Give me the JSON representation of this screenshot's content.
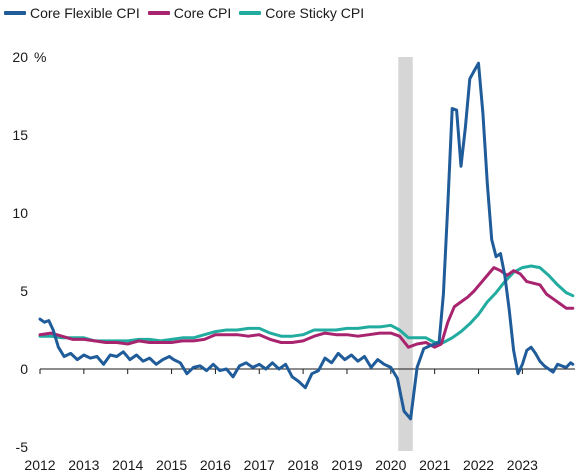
{
  "chart_data": {
    "type": "line",
    "title": "",
    "xlabel": "",
    "ylabel": "",
    "y_unit": "%",
    "ylim": [
      -5,
      20
    ],
    "yticks": [
      -5,
      0,
      5,
      10,
      15,
      20
    ],
    "xlim": [
      2012,
      2024.2
    ],
    "xticks": [
      2012,
      2013,
      2014,
      2015,
      2016,
      2017,
      2018,
      2019,
      2020,
      2021,
      2022,
      2023
    ],
    "legend_position": "top-left",
    "grid": false,
    "zero_line": true,
    "recession_shading": [
      [
        2020.17,
        2020.5
      ]
    ],
    "colors": {
      "flexible": "#1f5c99",
      "core": "#a8246e",
      "sticky": "#22aca0",
      "shade": "#d6d6d6"
    },
    "series": [
      {
        "name": "Core Flexible CPI",
        "key": "flexible",
        "x": [
          2012.0,
          2012.1,
          2012.2,
          2012.3,
          2012.42,
          2012.55,
          2012.7,
          2012.85,
          2013.0,
          2013.15,
          2013.3,
          2013.45,
          2013.6,
          2013.75,
          2013.9,
          2014.05,
          2014.2,
          2014.35,
          2014.5,
          2014.65,
          2014.8,
          2014.95,
          2015.05,
          2015.2,
          2015.35,
          2015.5,
          2015.65,
          2015.8,
          2015.95,
          2016.1,
          2016.25,
          2016.4,
          2016.55,
          2016.7,
          2016.85,
          2017.0,
          2017.15,
          2017.3,
          2017.45,
          2017.6,
          2017.75,
          2017.9,
          2018.05,
          2018.2,
          2018.35,
          2018.5,
          2018.65,
          2018.8,
          2018.95,
          2019.1,
          2019.25,
          2019.4,
          2019.55,
          2019.7,
          2019.85,
          2020.0,
          2020.15,
          2020.3,
          2020.45,
          2020.6,
          2020.75,
          2020.9,
          2021.0,
          2021.1,
          2021.2,
          2021.3,
          2021.4,
          2021.5,
          2021.6,
          2021.7,
          2021.8,
          2021.9,
          2022.0,
          2022.1,
          2022.2,
          2022.3,
          2022.4,
          2022.5,
          2022.6,
          2022.7,
          2022.8,
          2022.9,
          2023.0,
          2023.1,
          2023.2,
          2023.3,
          2023.4,
          2023.5,
          2023.6,
          2023.7,
          2023.8,
          2023.9,
          2024.0,
          2024.1,
          2024.15
        ],
        "values": [
          3.2,
          3.0,
          3.1,
          2.5,
          1.4,
          0.8,
          1.0,
          0.6,
          0.9,
          0.7,
          0.8,
          0.3,
          0.9,
          0.8,
          1.1,
          0.6,
          0.9,
          0.5,
          0.7,
          0.3,
          0.6,
          0.8,
          0.6,
          0.4,
          -0.3,
          0.1,
          0.2,
          -0.1,
          0.3,
          -0.1,
          0.0,
          -0.5,
          0.2,
          0.4,
          0.1,
          0.3,
          0.0,
          0.4,
          0.0,
          0.3,
          -0.5,
          -0.8,
          -1.2,
          -0.3,
          -0.1,
          0.7,
          0.4,
          1.0,
          0.6,
          0.9,
          0.5,
          0.8,
          0.1,
          0.6,
          0.3,
          0.1,
          -0.6,
          -2.7,
          -3.2,
          0.1,
          1.3,
          1.5,
          1.6,
          1.7,
          4.8,
          10.5,
          16.7,
          16.6,
          13.0,
          15.5,
          18.6,
          19.1,
          19.6,
          16.4,
          11.9,
          8.3,
          7.2,
          7.4,
          6.0,
          3.8,
          1.2,
          -0.3,
          0.3,
          1.2,
          1.4,
          1.0,
          0.5,
          0.2,
          0.0,
          -0.2,
          0.3,
          0.2,
          0.1,
          0.4,
          0.3
        ]
      },
      {
        "name": "Core CPI",
        "key": "core",
        "x": [
          2012.0,
          2012.25,
          2012.5,
          2012.75,
          2013.0,
          2013.25,
          2013.5,
          2013.75,
          2014.0,
          2014.25,
          2014.5,
          2014.75,
          2015.0,
          2015.25,
          2015.5,
          2015.75,
          2016.0,
          2016.25,
          2016.5,
          2016.75,
          2017.0,
          2017.25,
          2017.5,
          2017.75,
          2018.0,
          2018.25,
          2018.5,
          2018.75,
          2019.0,
          2019.25,
          2019.5,
          2019.75,
          2020.0,
          2020.2,
          2020.4,
          2020.6,
          2020.8,
          2021.0,
          2021.15,
          2021.3,
          2021.45,
          2021.6,
          2021.75,
          2021.9,
          2022.05,
          2022.2,
          2022.35,
          2022.5,
          2022.65,
          2022.8,
          2022.95,
          2023.1,
          2023.25,
          2023.4,
          2023.55,
          2023.7,
          2023.85,
          2024.0,
          2024.15
        ],
        "values": [
          2.2,
          2.3,
          2.1,
          1.9,
          1.9,
          1.8,
          1.7,
          1.7,
          1.6,
          1.8,
          1.7,
          1.7,
          1.7,
          1.8,
          1.8,
          1.9,
          2.2,
          2.2,
          2.2,
          2.1,
          2.2,
          1.9,
          1.7,
          1.7,
          1.8,
          2.1,
          2.3,
          2.2,
          2.2,
          2.1,
          2.2,
          2.3,
          2.3,
          2.1,
          1.4,
          1.6,
          1.7,
          1.4,
          1.6,
          3.0,
          4.0,
          4.3,
          4.6,
          5.0,
          5.5,
          6.0,
          6.5,
          6.3,
          6.0,
          6.3,
          6.1,
          5.6,
          5.5,
          5.4,
          4.8,
          4.5,
          4.2,
          3.9,
          3.9
        ]
      },
      {
        "name": "Core Sticky CPI",
        "key": "sticky",
        "x": [
          2012.0,
          2012.25,
          2012.5,
          2012.75,
          2013.0,
          2013.25,
          2013.5,
          2013.75,
          2014.0,
          2014.25,
          2014.5,
          2014.75,
          2015.0,
          2015.25,
          2015.5,
          2015.75,
          2016.0,
          2016.25,
          2016.5,
          2016.75,
          2017.0,
          2017.25,
          2017.5,
          2017.75,
          2018.0,
          2018.25,
          2018.5,
          2018.75,
          2019.0,
          2019.25,
          2019.5,
          2019.75,
          2020.0,
          2020.2,
          2020.4,
          2020.6,
          2020.8,
          2021.0,
          2021.2,
          2021.4,
          2021.6,
          2021.8,
          2022.0,
          2022.2,
          2022.4,
          2022.6,
          2022.8,
          2023.0,
          2023.2,
          2023.4,
          2023.6,
          2023.8,
          2024.0,
          2024.15
        ],
        "values": [
          2.1,
          2.1,
          2.0,
          2.0,
          2.0,
          1.8,
          1.8,
          1.8,
          1.8,
          1.9,
          1.9,
          1.8,
          1.9,
          2.0,
          2.0,
          2.2,
          2.4,
          2.5,
          2.5,
          2.6,
          2.6,
          2.3,
          2.1,
          2.1,
          2.2,
          2.5,
          2.5,
          2.5,
          2.6,
          2.6,
          2.7,
          2.7,
          2.8,
          2.5,
          2.0,
          2.0,
          2.0,
          1.7,
          1.7,
          2.0,
          2.4,
          2.9,
          3.5,
          4.3,
          4.9,
          5.6,
          6.2,
          6.5,
          6.6,
          6.5,
          6.0,
          5.4,
          4.9,
          4.7
        ]
      }
    ]
  }
}
